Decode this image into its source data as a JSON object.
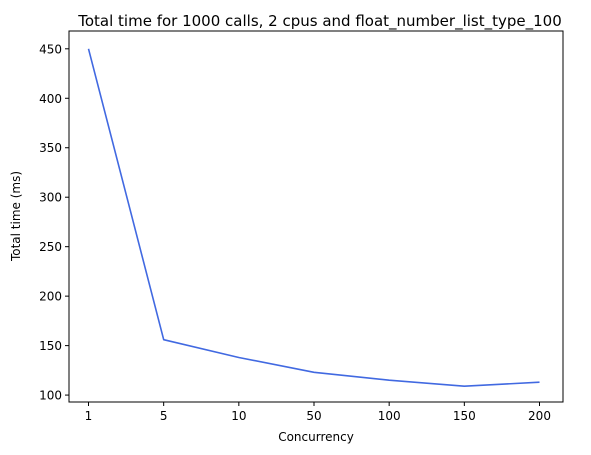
{
  "chart_data": {
    "type": "line",
    "title": "Total time for 1000 calls, 2 cpus and float_number_list_type_100",
    "xlabel": "Concurrency",
    "ylabel": "Total time (ms)",
    "categories": [
      "1",
      "5",
      "10",
      "50",
      "100",
      "150",
      "200"
    ],
    "series": [
      {
        "values": [
          450,
          156,
          138,
          123,
          115,
          109,
          113
        ],
        "color": "#4169e1"
      }
    ],
    "yticks": [
      100,
      150,
      200,
      250,
      300,
      350,
      400,
      450
    ],
    "ylim": [
      93,
      468
    ],
    "grid": false,
    "legend": "none"
  }
}
